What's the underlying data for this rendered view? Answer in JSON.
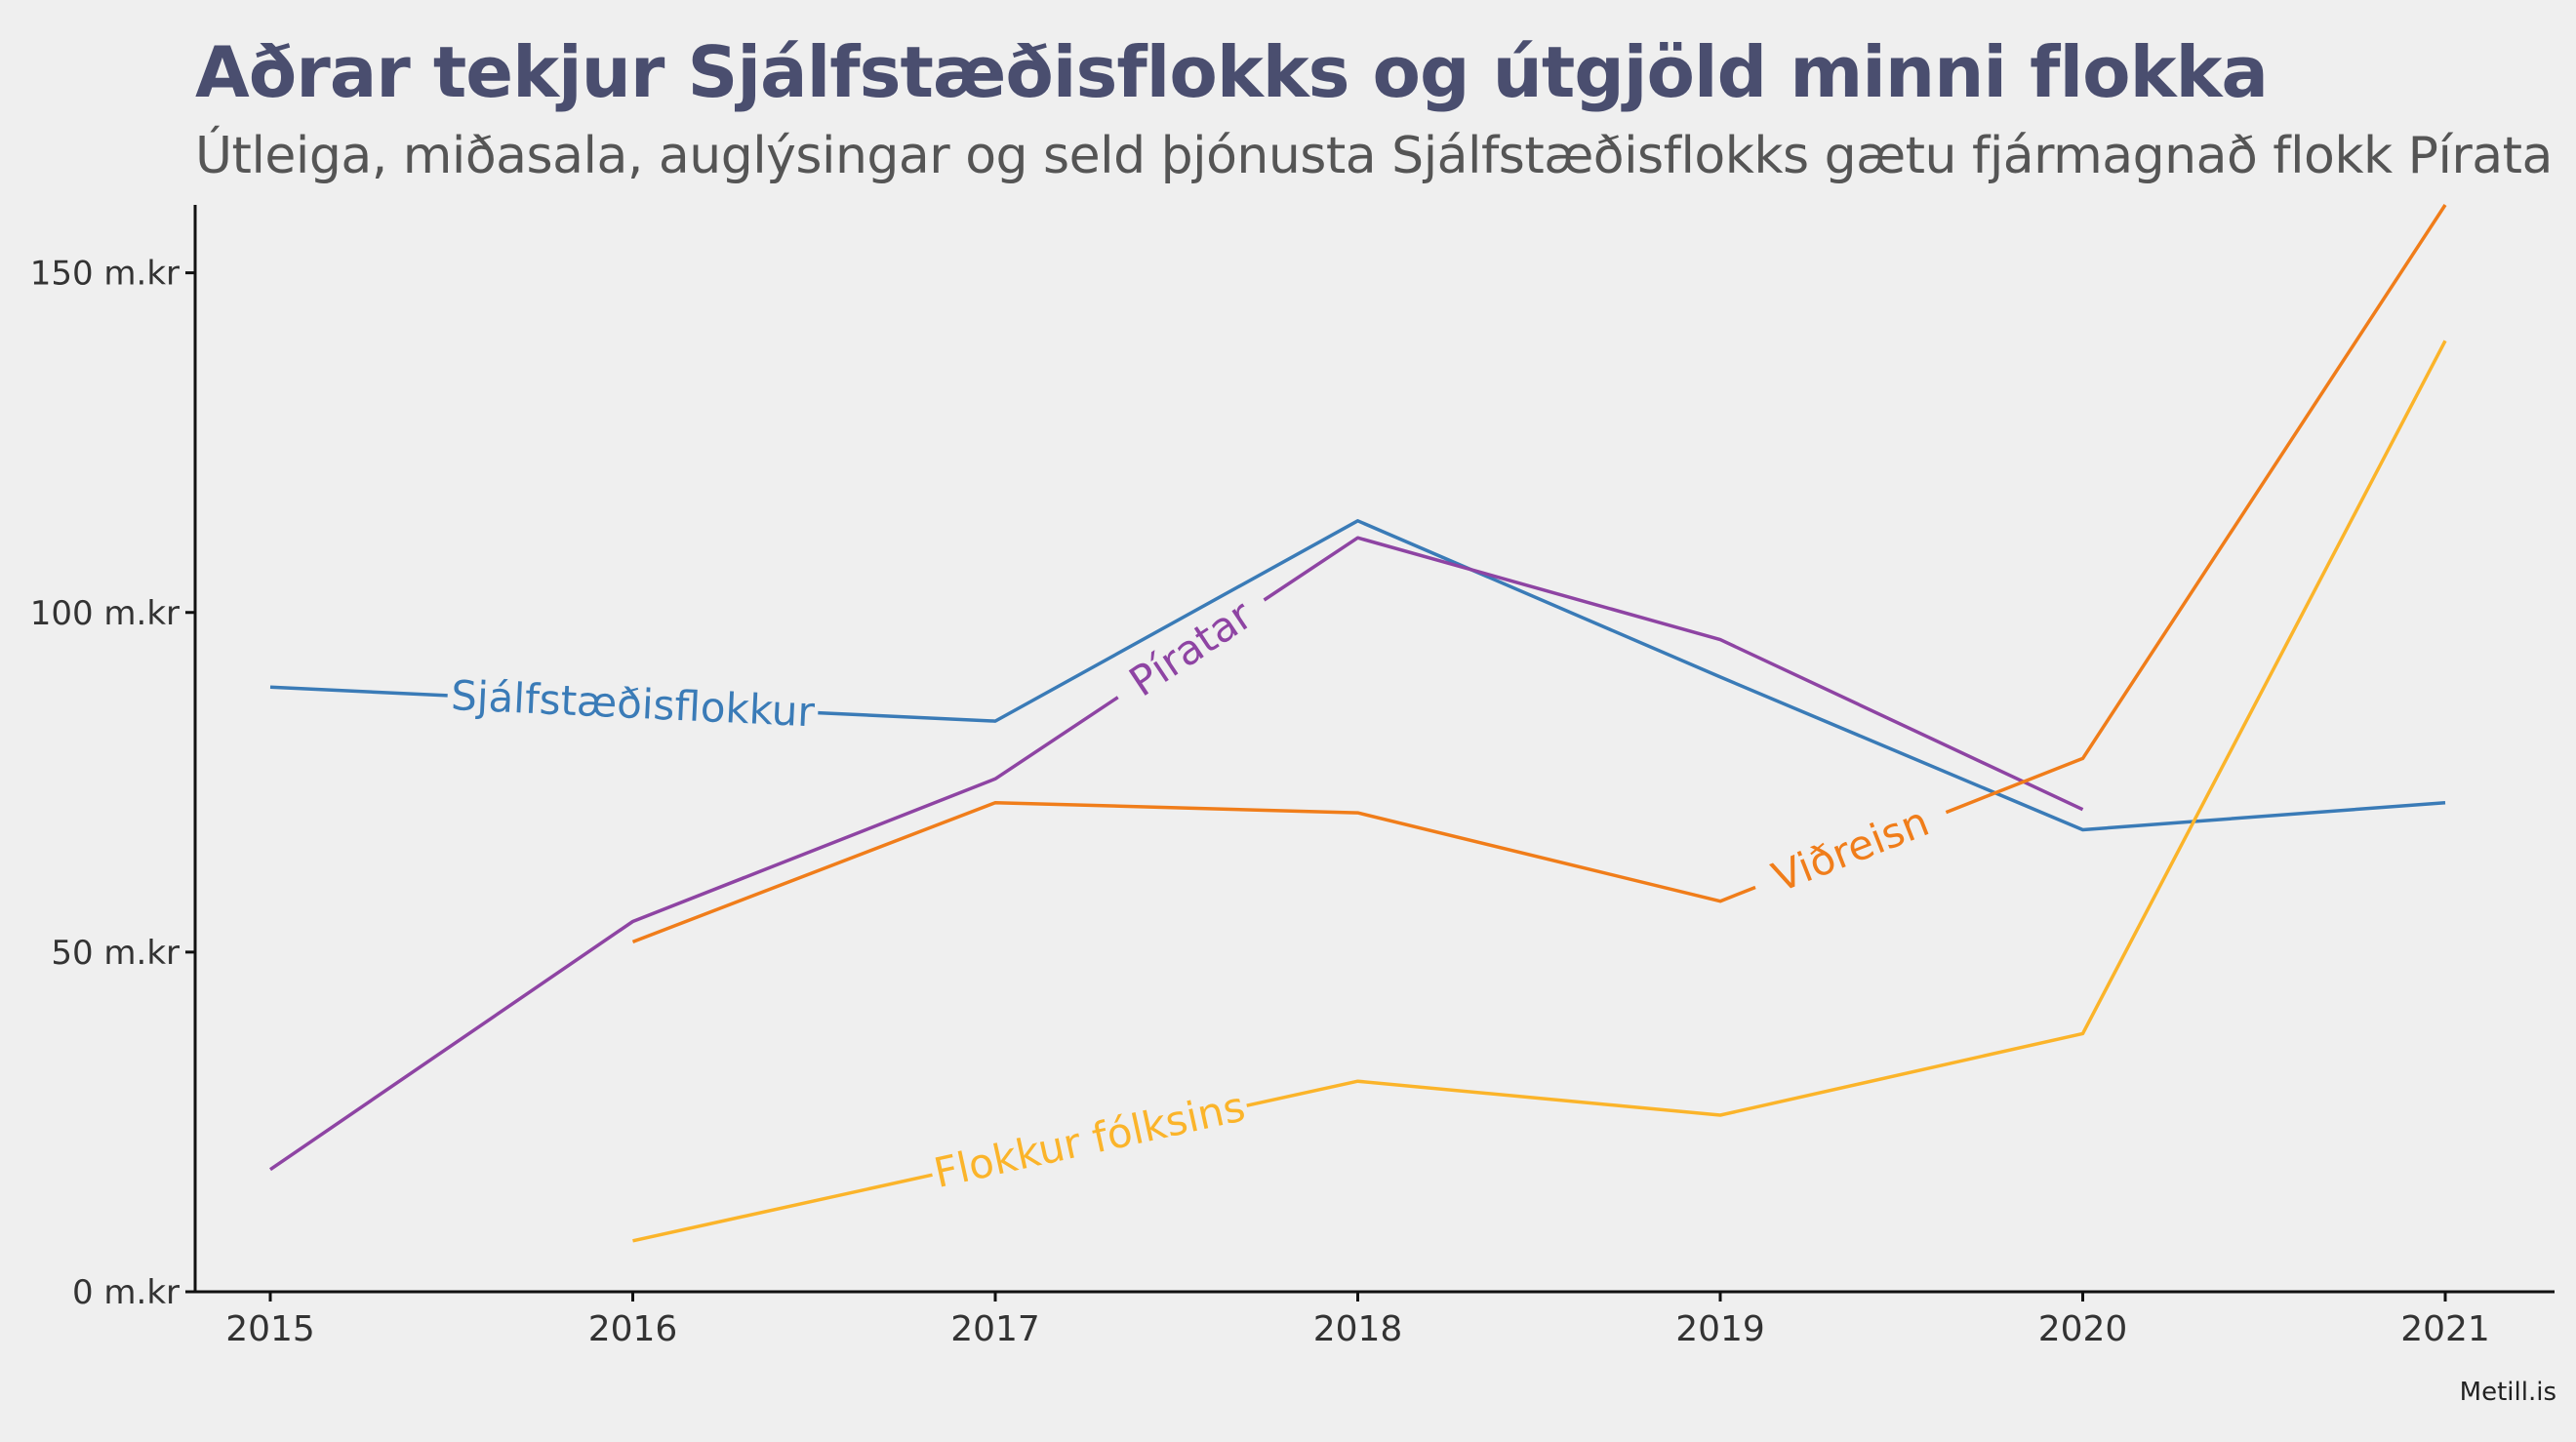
{
  "chart_data": {
    "type": "line",
    "title": "Aðrar tekjur Sjálfstæðisflokks og útgjöld minni flokka",
    "subtitle": "Útleiga, miðasala, auglýsingar og seld þjónusta Sjálfstæðisflokks gætu fjármagnað flokk Pírata",
    "caption": "Metill.is",
    "xlabel": "",
    "ylabel": "",
    "x": [
      2015,
      2016,
      2017,
      2018,
      2019,
      2020,
      2021
    ],
    "x_tick_labels": [
      "2015",
      "2016",
      "2017",
      "2018",
      "2019",
      "2020",
      "2021"
    ],
    "ylim": [
      0,
      160
    ],
    "y_ticks": [
      0,
      50,
      100,
      150
    ],
    "y_tick_labels": [
      "0 m.kr",
      "50 m.kr",
      "100 m.kr",
      "150 m.kr"
    ],
    "grid": false,
    "legend": "none (direct labels on lines)",
    "series": [
      {
        "name": "Sjálfstæðisflokkur",
        "color": "#3a7bb7",
        "values": [
          89,
          null,
          84,
          113.5,
          90.5,
          68,
          72
        ],
        "x": [
          2015,
          2016,
          2017,
          2018,
          2019,
          2020,
          2021
        ]
      },
      {
        "name": "Píratar",
        "color": "#8e44a3",
        "values": [
          18,
          54.5,
          75.5,
          111,
          96,
          71,
          null
        ],
        "x": [
          2015,
          2016,
          2017,
          2018,
          2019,
          2020,
          2021
        ]
      },
      {
        "name": "Viðreisn",
        "color": "#f07d1a",
        "values": [
          null,
          51.5,
          72,
          70.5,
          57.5,
          78.5,
          160
        ],
        "x": [
          2015,
          2016,
          2017,
          2018,
          2019,
          2020,
          2021
        ]
      },
      {
        "name": "Flokkur fólksins",
        "color": "#fbb42a",
        "values": [
          null,
          7.5,
          null,
          31,
          26,
          38,
          140
        ],
        "x": [
          2015,
          2016,
          2017,
          2018,
          2019,
          2020,
          2021
        ]
      }
    ]
  }
}
